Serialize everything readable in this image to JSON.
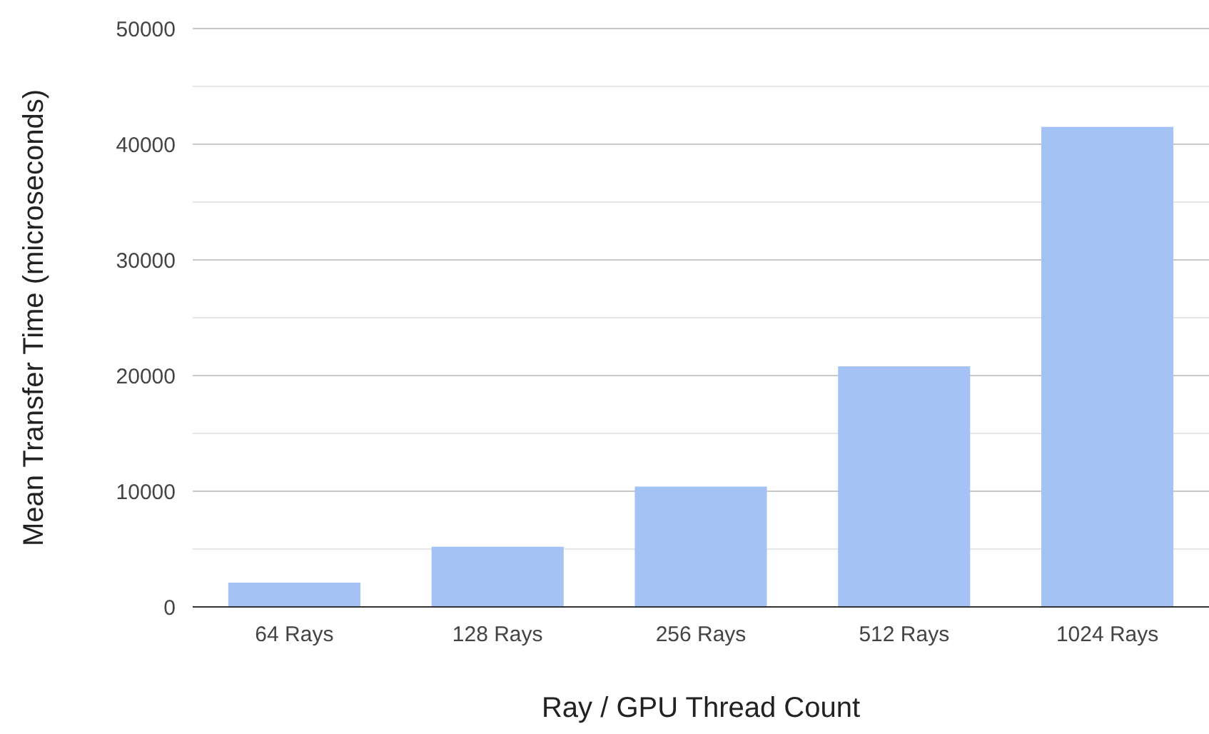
{
  "chart_data": {
    "type": "bar",
    "xlabel": "Ray / GPU Thread Count",
    "ylabel": "Mean Transfer Time (microseconds)",
    "categories": [
      "64 Rays",
      "128 Rays",
      "256 Rays",
      "512 Rays",
      "1024 Rays"
    ],
    "values": [
      2100,
      5200,
      10400,
      20800,
      41500
    ],
    "color": "#a4c2f4",
    "ylim": [
      0,
      50000
    ],
    "yticks": [
      0,
      {
        "value": 5000,
        "label": null
      },
      10000,
      {
        "value": 15000,
        "label": null
      },
      20000,
      {
        "value": 25000,
        "label": null
      },
      30000,
      {
        "value": 35000,
        "label": null
      },
      40000,
      {
        "value": 45000,
        "label": null
      },
      50000
    ],
    "grid": true
  }
}
